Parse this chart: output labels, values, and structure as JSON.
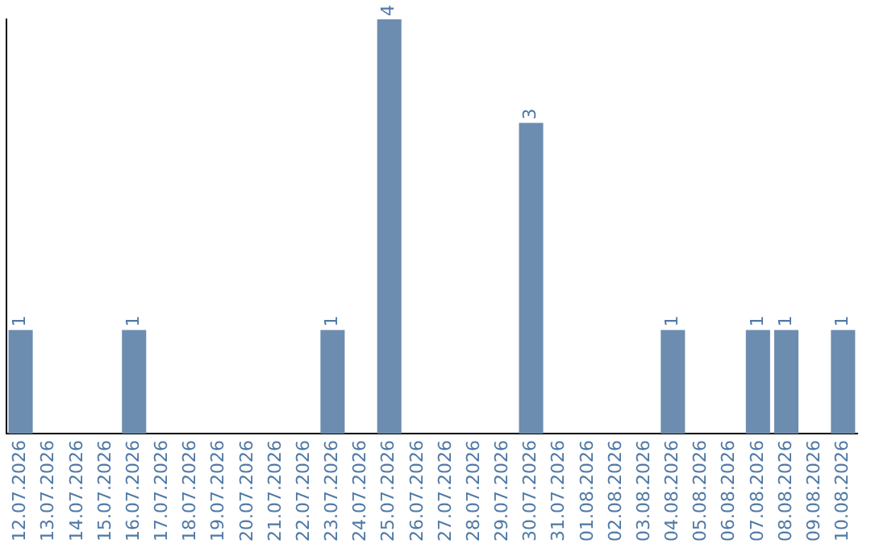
{
  "chart_data": {
    "type": "bar",
    "categories": [
      "12.07.2026",
      "13.07.2026",
      "14.07.2026",
      "15.07.2026",
      "16.07.2026",
      "17.07.2026",
      "18.07.2026",
      "19.07.2026",
      "20.07.2026",
      "21.07.2026",
      "22.07.2026",
      "23.07.2026",
      "24.07.2026",
      "25.07.2026",
      "26.07.2026",
      "27.07.2026",
      "28.07.2026",
      "29.07.2026",
      "30.07.2026",
      "31.07.2026",
      "01.08.2026",
      "02.08.2026",
      "03.08.2026",
      "04.08.2026",
      "05.08.2026",
      "06.08.2026",
      "07.08.2026",
      "08.08.2026",
      "09.08.2026",
      "10.08.2026"
    ],
    "values": [
      1,
      0,
      0,
      0,
      1,
      0,
      0,
      0,
      0,
      0,
      0,
      1,
      0,
      4,
      0,
      0,
      0,
      0,
      3,
      0,
      0,
      0,
      0,
      1,
      0,
      0,
      1,
      1,
      0,
      1
    ],
    "value_labels": [
      "1",
      null,
      null,
      null,
      "1",
      null,
      null,
      null,
      null,
      null,
      null,
      "1",
      null,
      "4",
      null,
      null,
      null,
      null,
      "3",
      null,
      null,
      null,
      null,
      "1",
      null,
      null,
      "1",
      "1",
      null,
      "1"
    ],
    "color": "#6c8daf",
    "grid": false,
    "legend": false
  }
}
